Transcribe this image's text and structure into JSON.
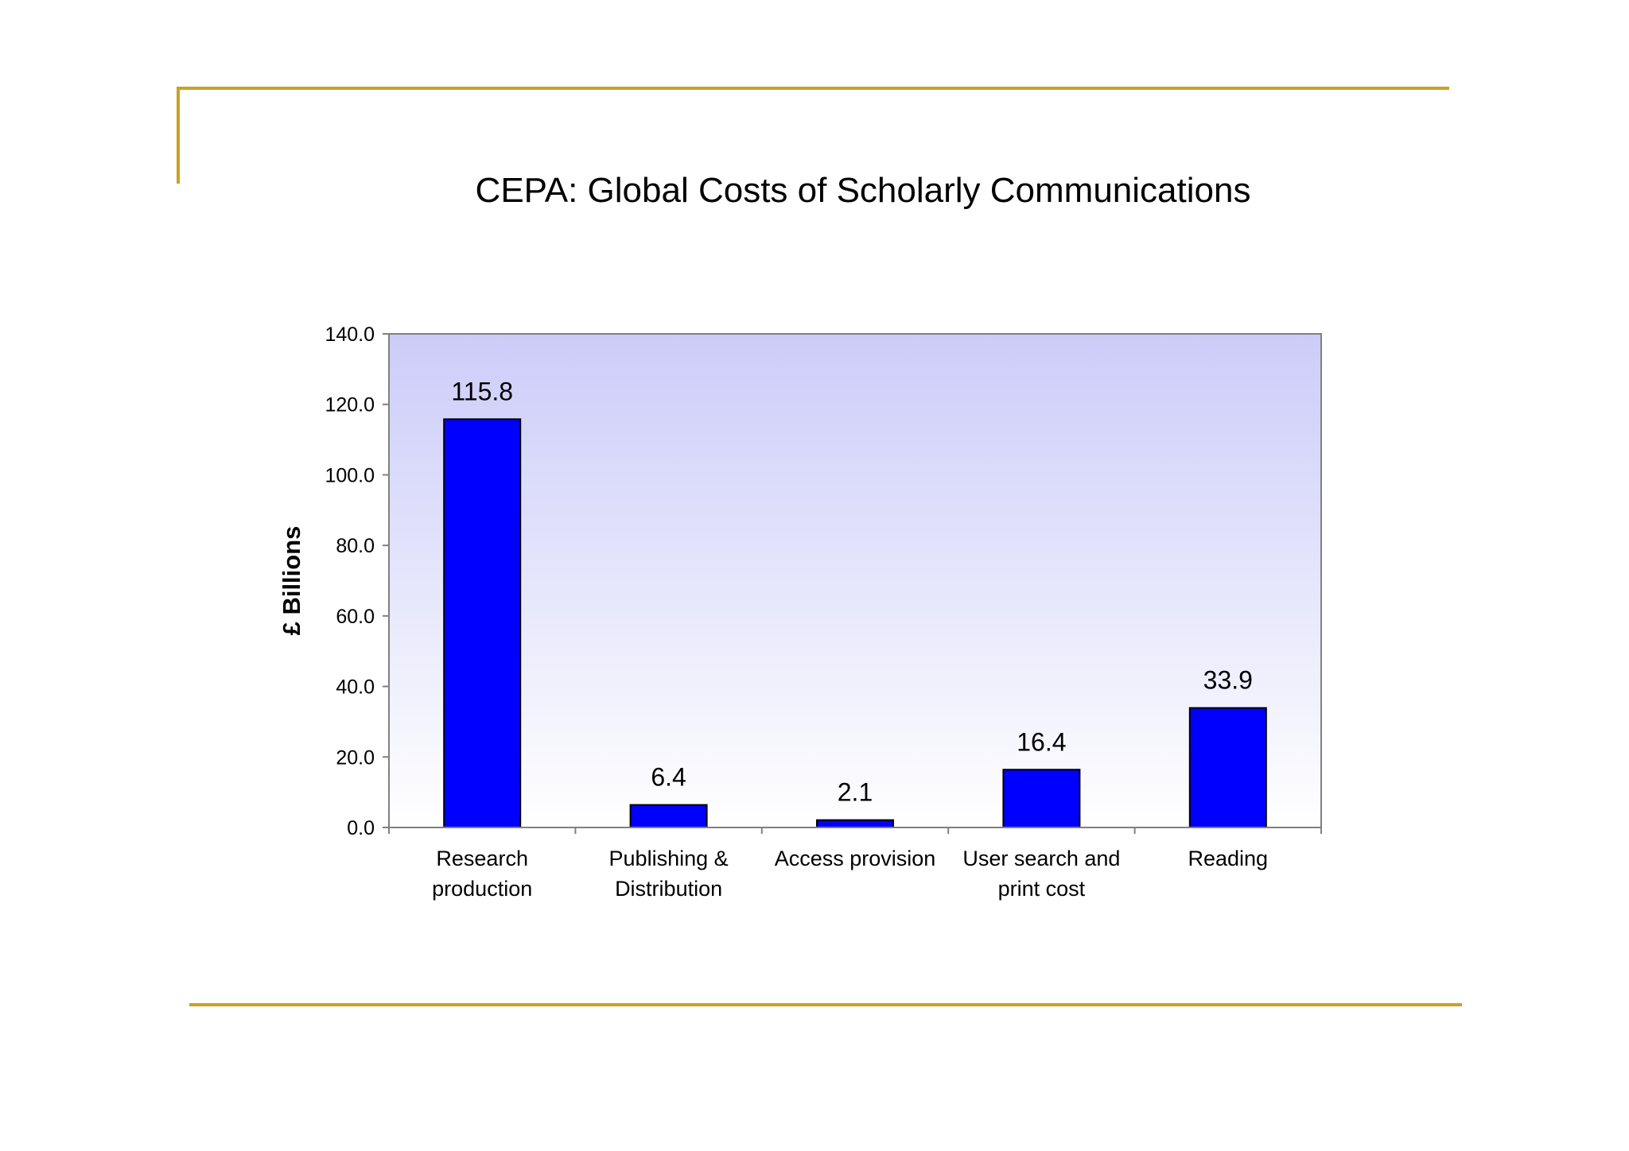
{
  "slide": {
    "accent_color": "#c9a227",
    "title": "CEPA: Global Costs of Scholarly Communications"
  },
  "chart_data": {
    "type": "bar",
    "title": "CEPA: Global Costs of Scholarly Communications",
    "xlabel": "",
    "ylabel": "£ Billions",
    "categories": [
      [
        "Research",
        "production"
      ],
      [
        "Publishing &",
        "Distribution"
      ],
      [
        "Access provision"
      ],
      [
        "User search and",
        "print cost"
      ],
      [
        "Reading"
      ]
    ],
    "values": [
      115.8,
      6.4,
      2.1,
      16.4,
      33.9
    ],
    "value_labels": [
      "115.8",
      "6.4",
      "2.1",
      "16.4",
      "33.9"
    ],
    "ylim": [
      0,
      140
    ],
    "yticks": [
      "0.0",
      "20.0",
      "40.0",
      "60.0",
      "80.0",
      "100.0",
      "120.0",
      "140.0"
    ],
    "bar_color": "#0000ff",
    "plot_background_top": "#ccccf9",
    "plot_background_bottom": "#ffffff",
    "grid": false,
    "legend": "none"
  }
}
